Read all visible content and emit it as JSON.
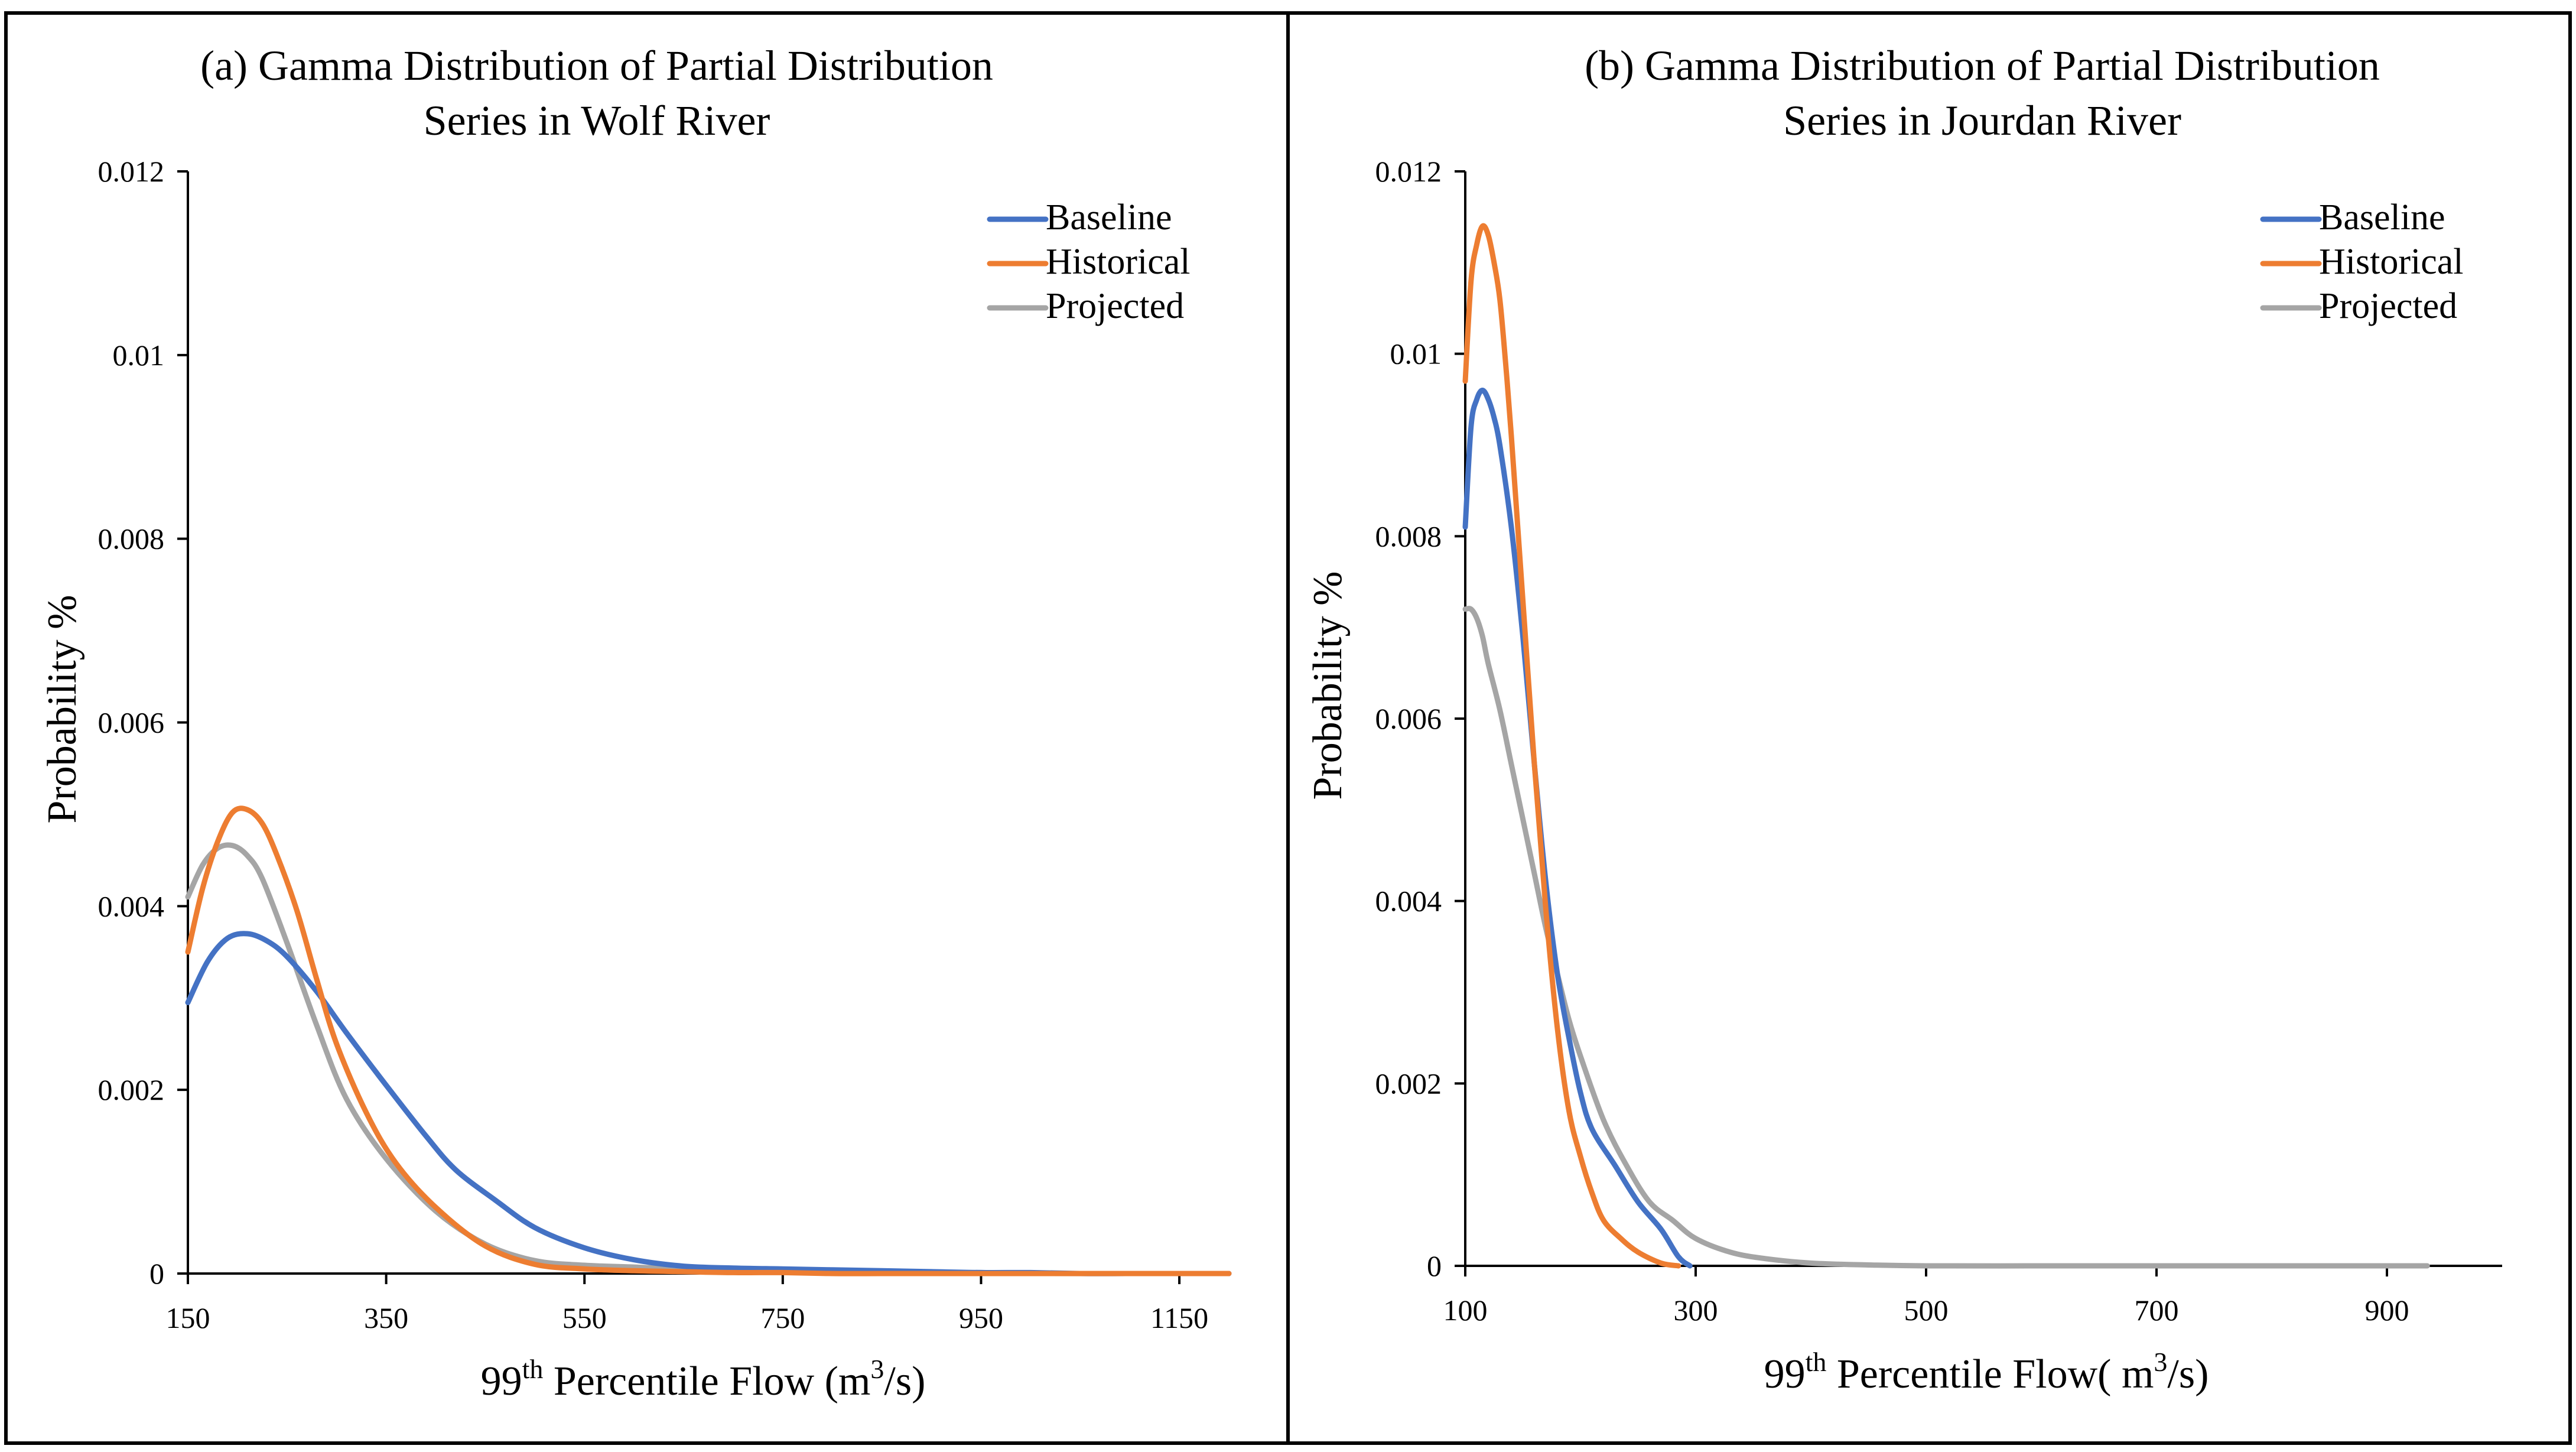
{
  "chart_data": [
    {
      "type": "line",
      "title_line1": "(a) Gamma Distribution  of Partial Distribution",
      "title_line2": "Series in Wolf River",
      "xlabel_main": "99",
      "xlabel_sup": "th",
      "xlabel_rest": " Percentile Flow (m",
      "xlabel_unit_sup": "3",
      "xlabel_end": "/s)",
      "ylabel": "Probability %",
      "xlim": [
        150,
        1200
      ],
      "ylim": [
        0,
        0.012
      ],
      "xticks": [
        150,
        350,
        550,
        750,
        950,
        1150
      ],
      "xtick_labels": [
        "150",
        "350",
        "550",
        "750",
        "950",
        "1150"
      ],
      "yticks": [
        0,
        0.002,
        0.004,
        0.006,
        0.008,
        0.01,
        0.012
      ],
      "ytick_labels": [
        "0",
        "0.002",
        "0.004",
        "0.006",
        "0.008",
        "0.01",
        "0.012"
      ],
      "legend_position": "top-right",
      "series": [
        {
          "name": "Baseline",
          "color": "#4472C4",
          "x": [
            150,
            170,
            190,
            210,
            230,
            250,
            280,
            310,
            350,
            390,
            420,
            460,
            500,
            550,
            600,
            650,
            700,
            750,
            800,
            850,
            900,
            950,
            1000,
            1050,
            1100,
            1150,
            1200
          ],
          "y": [
            0.00295,
            0.0034,
            0.00365,
            0.0037,
            0.00362,
            0.00345,
            0.00307,
            0.00262,
            0.00205,
            0.0015,
            0.00113,
            0.0008,
            0.0005,
            0.00028,
            0.00015,
            8e-05,
            6e-05,
            5e-05,
            4e-05,
            3e-05,
            2e-05,
            1e-05,
            1e-05,
            0.0,
            0.0,
            0.0,
            0.0
          ]
        },
        {
          "name": "Historical",
          "color": "#ED7D31",
          "x": [
            150,
            165,
            180,
            195,
            210,
            225,
            240,
            260,
            280,
            300,
            330,
            360,
            400,
            450,
            500,
            550,
            600,
            650,
            700,
            750,
            800,
            850,
            900,
            950,
            1000,
            1100,
            1200
          ],
          "y": [
            0.0035,
            0.0042,
            0.0047,
            0.00502,
            0.00505,
            0.0049,
            0.00455,
            0.00395,
            0.0032,
            0.0025,
            0.00175,
            0.0012,
            0.00072,
            0.0003,
            0.0001,
            5e-05,
            3e-05,
            2e-05,
            1e-05,
            1e-05,
            0.0,
            0.0,
            0.0,
            0.0,
            0.0,
            0.0,
            0.0
          ]
        },
        {
          "name": "Projected",
          "color": "#A5A5A5",
          "x": [
            150,
            165,
            180,
            195,
            210,
            225,
            250,
            280,
            310,
            350,
            400,
            450,
            500,
            550,
            600,
            650,
            700,
            750,
            800,
            850,
            900,
            950,
            1000,
            1100,
            1200
          ],
          "y": [
            0.0041,
            0.00445,
            0.00463,
            0.00466,
            0.00455,
            0.0043,
            0.0036,
            0.0027,
            0.0019,
            0.00125,
            0.00068,
            0.00032,
            0.00014,
            9e-05,
            7e-05,
            5e-05,
            4e-05,
            3e-05,
            2e-05,
            2e-05,
            1e-05,
            1e-05,
            0.0,
            0.0,
            0.0
          ]
        }
      ]
    },
    {
      "type": "line",
      "title_line1": "(b) Gamma Distribution of Partial Distribution",
      "title_line2": "Series in Jourdan River",
      "xlabel_main": "99",
      "xlabel_sup": "th",
      "xlabel_rest": " Percentile Flow( m",
      "xlabel_unit_sup": "3",
      "xlabel_end": "/s)",
      "ylabel": "Probability %",
      "xlim": [
        100,
        1000
      ],
      "ylim": [
        0,
        0.012
      ],
      "xticks": [
        100,
        300,
        500,
        700,
        900
      ],
      "xtick_labels": [
        "100",
        "300",
        "500",
        "700",
        "900"
      ],
      "yticks": [
        0,
        0.002,
        0.004,
        0.006,
        0.008,
        0.01,
        0.012
      ],
      "ytick_labels": [
        "0",
        "0.002",
        "0.004",
        "0.006",
        "0.008",
        "0.01",
        "0.012"
      ],
      "legend_position": "top-right",
      "series": [
        {
          "name": "Baseline",
          "color": "#4472C4",
          "x": [
            100,
            105,
            110,
            115,
            120,
            125,
            130,
            140,
            150,
            160,
            170,
            180,
            190,
            200,
            210,
            230,
            250,
            270,
            285,
            295
          ],
          "y": [
            0.0081,
            0.0092,
            0.0095,
            0.0096,
            0.0095,
            0.0093,
            0.009,
            0.0081,
            0.0069,
            0.0055,
            0.0042,
            0.0032,
            0.0025,
            0.0019,
            0.0015,
            0.0011,
            0.0007,
            0.0004,
            0.0001,
            0.0
          ]
        },
        {
          "name": "Historical",
          "color": "#ED7D31",
          "x": [
            100,
            105,
            110,
            115,
            120,
            125,
            130,
            135,
            140,
            150,
            160,
            170,
            180,
            190,
            200,
            210,
            220,
            235,
            250,
            270,
            285
          ],
          "y": [
            0.0097,
            0.0108,
            0.0112,
            0.0114,
            0.0113,
            0.011,
            0.0106,
            0.0099,
            0.0091,
            0.0073,
            0.0055,
            0.0039,
            0.0026,
            0.0017,
            0.0012,
            0.0008,
            0.0005,
            0.0003,
            0.00015,
            3e-05,
            0.0
          ]
        },
        {
          "name": "Projected",
          "color": "#A5A5A5",
          "x": [
            100,
            105,
            110,
            115,
            120,
            130,
            140,
            150,
            160,
            170,
            180,
            190,
            200,
            220,
            240,
            260,
            280,
            300,
            330,
            360,
            400,
            450,
            500,
            600,
            700,
            800,
            935
          ],
          "y": [
            0.0072,
            0.0072,
            0.0071,
            0.0069,
            0.0066,
            0.0061,
            0.0055,
            0.0049,
            0.0043,
            0.0037,
            0.0032,
            0.0027,
            0.0023,
            0.0016,
            0.0011,
            0.0007,
            0.0005,
            0.0003,
            0.00015,
            8e-05,
            3e-05,
            1e-05,
            0.0,
            0.0,
            0.0,
            0.0,
            0.0
          ]
        }
      ]
    }
  ]
}
